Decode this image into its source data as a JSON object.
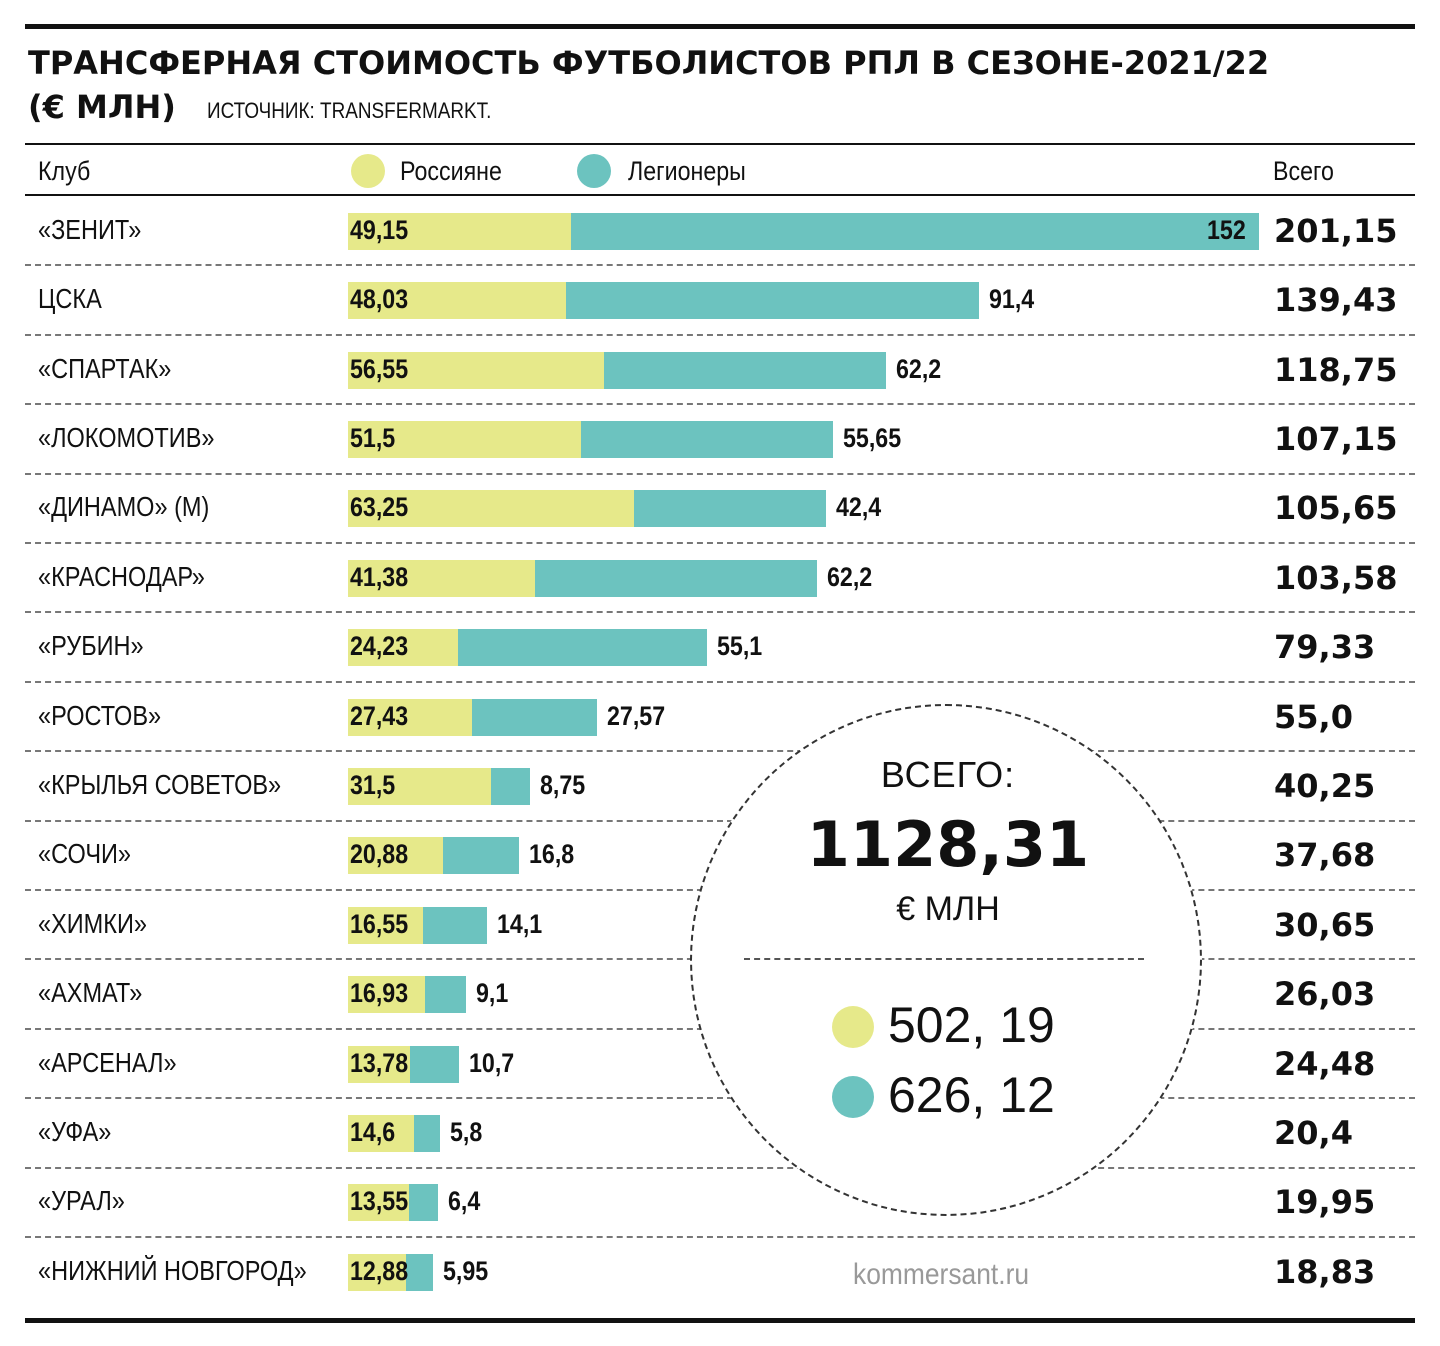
{
  "title_line1": "ТРАНСФЕРНАЯ СТОИМОСТЬ ФУТБОЛИСТОВ РПЛ В СЕЗОНЕ-2021/22",
  "title_line2": "(€ МЛН)",
  "source": "ИСТОЧНИК: TRANSFERMARKT.",
  "header": {
    "club": "Клуб",
    "total": "Всего"
  },
  "legend": [
    {
      "name": "Россияне",
      "color": "#e6e98a"
    },
    {
      "name": "Легионеры",
      "color": "#6cc3bf"
    }
  ],
  "chart_data": {
    "type": "bar",
    "stacked": true,
    "orientation": "horizontal",
    "categories": [
      "«ЗЕНИТ»",
      "ЦСКА",
      "«СПАРТАК»",
      "«ЛОКОМОТИВ»",
      "«ДИНАМО» (М)",
      "«КРАСНОДАР»",
      "«РУБИН»",
      "«РОСТОВ»",
      "«КРЫЛЬЯ СОВЕТОВ»",
      "«СОЧИ»",
      "«ХИМКИ»",
      "«АХМАТ»",
      "«АРСЕНАЛ»",
      "«УФА»",
      "«УРАЛ»",
      "«НИЖНИЙ НОВГОРОД»"
    ],
    "series": [
      {
        "name": "Россияне",
        "values": [
          49.15,
          48.03,
          56.55,
          51.5,
          63.25,
          41.38,
          24.23,
          27.43,
          31.5,
          20.88,
          16.55,
          16.93,
          13.78,
          14.6,
          13.55,
          12.88
        ],
        "labels": [
          "49,15",
          "48,03",
          "56,55",
          "51,5",
          "63,25",
          "41,38",
          "24,23",
          "27,43",
          "31,5",
          "20,88",
          "16,55",
          "16,93",
          "13,78",
          "14,6",
          "13,55",
          "12,88"
        ]
      },
      {
        "name": "Легионеры",
        "values": [
          152,
          91.4,
          62.2,
          55.65,
          42.4,
          62.2,
          55.1,
          27.57,
          8.75,
          16.8,
          14.1,
          9.1,
          10.7,
          5.8,
          6.4,
          5.95
        ],
        "labels": [
          "152",
          "91,4",
          "62,2",
          "55,65",
          "42,4",
          "62,2",
          "55,1",
          "27,57",
          "8,75",
          "16,8",
          "14,1",
          "9,1",
          "10,7",
          "5,8",
          "6,4",
          "5,95"
        ]
      }
    ],
    "totals": [
      "201,15",
      "139,43",
      "118,75",
      "107,15",
      "105,65",
      "103,58",
      "79,33",
      "55,0",
      "40,25",
      "37,68",
      "30,65",
      "26,03",
      "24,48",
      "20,4",
      "19,95",
      "18,83"
    ],
    "xlim": [
      0,
      201.15
    ],
    "grid": false,
    "legend_position": "top"
  },
  "summary": {
    "label": "ВСЕГО:",
    "value": "1128,31",
    "unit": "€ МЛН",
    "russians": "502, 19",
    "legionnaires": "626, 12"
  },
  "credit": "kommersant.ru"
}
